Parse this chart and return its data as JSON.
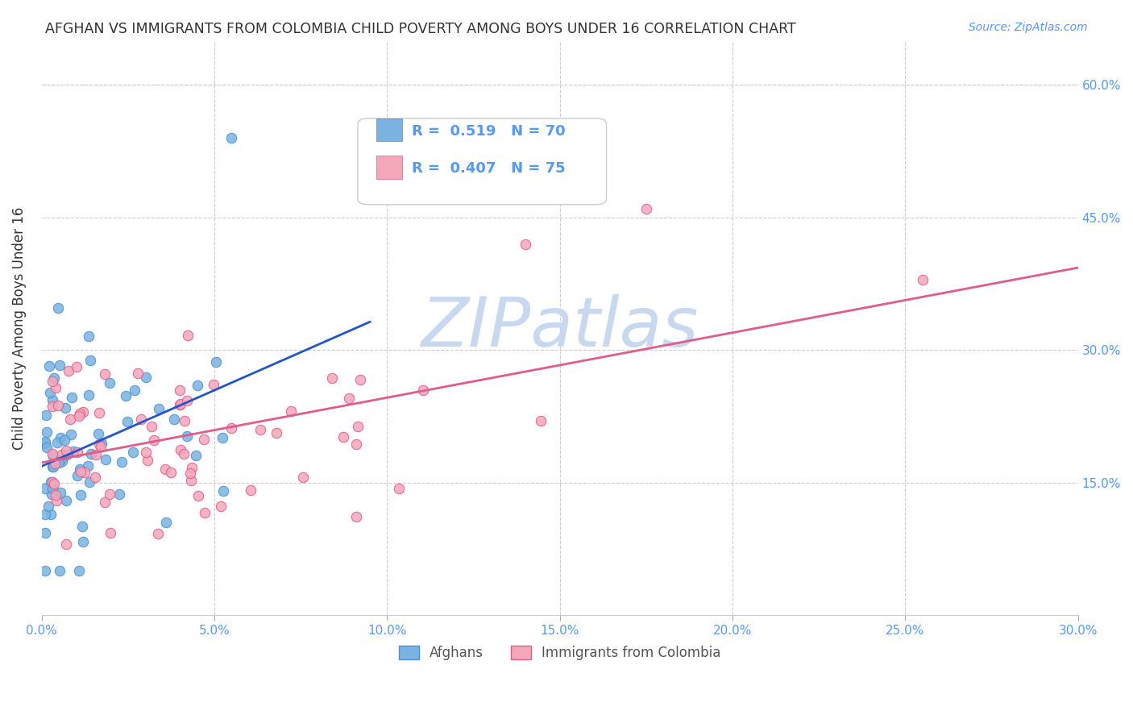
{
  "title": "AFGHAN VS IMMIGRANTS FROM COLOMBIA CHILD POVERTY AMONG BOYS UNDER 16 CORRELATION CHART",
  "source": "Source: ZipAtlas.com",
  "ylabel": "Child Poverty Among Boys Under 16",
  "xlim": [
    0.0,
    0.3
  ],
  "ylim": [
    0.0,
    0.65
  ],
  "xtick_labels": [
    "0.0%",
    "5.0%",
    "10.0%",
    "15.0%",
    "20.0%",
    "25.0%",
    "30.0%"
  ],
  "xtick_vals": [
    0.0,
    0.05,
    0.1,
    0.15,
    0.2,
    0.25,
    0.3
  ],
  "ytick_vals": [
    0.15,
    0.3,
    0.45,
    0.6
  ],
  "right_ytick_labels": [
    "15.0%",
    "30.0%",
    "45.0%",
    "60.0%"
  ],
  "afghans_color": "#7ab3e0",
  "afghans_edge": "#4a90d9",
  "colombia_color": "#f4a7b9",
  "colombia_edge": "#e05c8a",
  "trendline_afghan_color": "#2255cc",
  "trendline_colombia_color": "#e05c8a",
  "legend_R_afghan": "0.519",
  "legend_N_afghan": "70",
  "legend_R_colombia": "0.407",
  "legend_N_colombia": "75",
  "watermark": "ZIPatlas",
  "watermark_color": "#c8d8ee",
  "afghans_label": "Afghans",
  "colombia_label": "Immigrants from Colombia",
  "background_color": "#ffffff"
}
